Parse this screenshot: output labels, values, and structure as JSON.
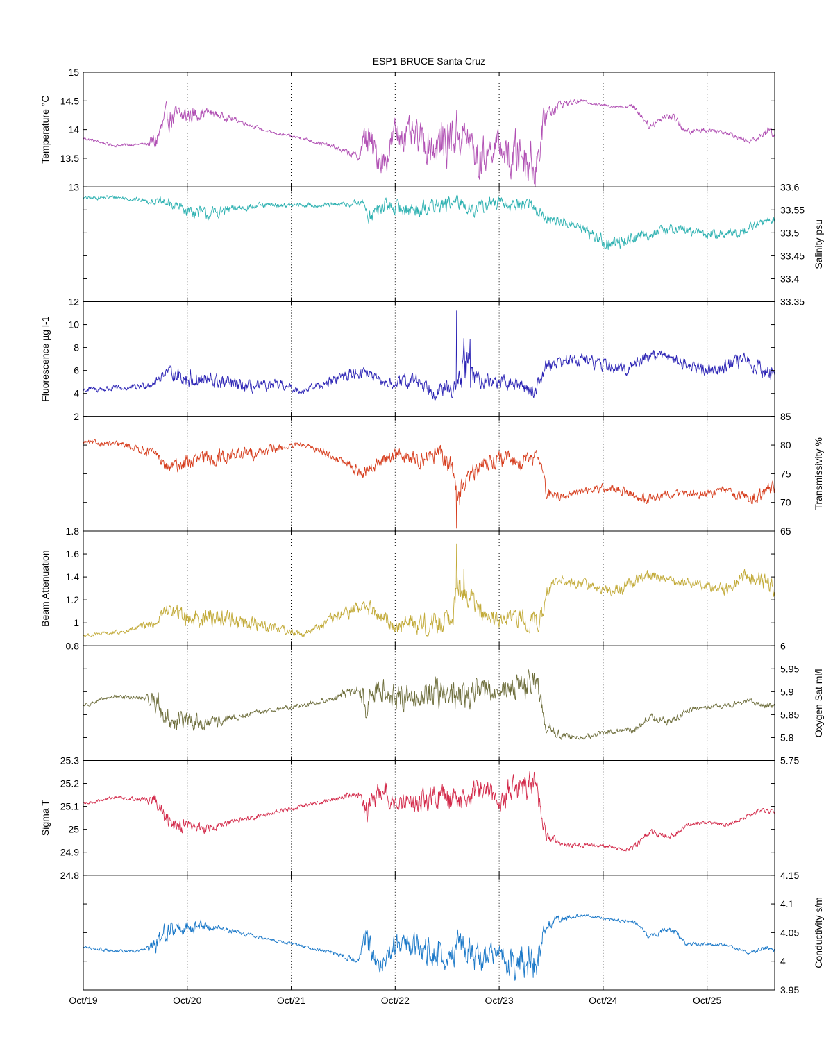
{
  "figure": {
    "title": "ESP1 BRUCE Santa Cruz",
    "x_tick_labels": [
      "Oct/19",
      "Oct/20",
      "Oct/21",
      "Oct/22",
      "Oct/23",
      "Oct/24",
      "Oct/25"
    ]
  },
  "chart_data": [
    {
      "type": "line",
      "ylabel": "Temperature °C",
      "axis_side": "left",
      "ylim": [
        13,
        15
      ],
      "yticks": [
        13,
        13.5,
        14,
        14.5,
        15
      ],
      "color": "#b04fb3",
      "x_unit": "days since Oct/19",
      "xlim": [
        0,
        6.65
      ],
      "x": [
        0,
        0.3,
        0.6,
        0.7,
        0.8,
        1.0,
        1.2,
        1.5,
        1.8,
        2.1,
        2.4,
        2.65,
        2.72,
        2.8,
        2.9,
        3.0,
        3.2,
        3.4,
        3.6,
        3.7,
        3.8,
        3.9,
        4.0,
        4.1,
        4.2,
        4.35,
        4.45,
        4.6,
        4.8,
        5.0,
        5.2,
        5.3,
        5.45,
        5.6,
        5.7,
        5.8,
        6.0,
        6.2,
        6.4,
        6.5,
        6.6,
        6.65
      ],
      "values": [
        13.85,
        13.72,
        13.75,
        13.8,
        14.2,
        14.25,
        14.3,
        14.15,
        13.95,
        13.85,
        13.7,
        13.52,
        13.9,
        13.6,
        13.45,
        13.95,
        13.85,
        13.7,
        13.95,
        13.85,
        13.45,
        13.65,
        13.75,
        13.45,
        13.65,
        13.35,
        14.3,
        14.45,
        14.5,
        14.42,
        14.4,
        14.4,
        14.05,
        14.25,
        14.2,
        13.95,
        14.0,
        13.95,
        13.78,
        13.88,
        14.0,
        13.9
      ],
      "noise": [
        0.02,
        0.02,
        0.02,
        0.15,
        0.15,
        0.12,
        0.06,
        0.03,
        0.02,
        0.02,
        0.03,
        0.05,
        0.25,
        0.2,
        0.2,
        0.2,
        0.2,
        0.3,
        0.3,
        0.2,
        0.3,
        0.2,
        0.15,
        0.3,
        0.3,
        0.3,
        0.12,
        0.05,
        0.02,
        0.02,
        0.02,
        0.04,
        0.04,
        0.05,
        0.06,
        0.04,
        0.03,
        0.03,
        0.03,
        0.05,
        0.06,
        0.04
      ]
    },
    {
      "type": "line",
      "ylabel": "Salinity psu",
      "axis_side": "right",
      "ylim": [
        33.35,
        33.6
      ],
      "yticks": [
        33.35,
        33.4,
        33.45,
        33.5,
        33.55,
        33.6
      ],
      "color": "#2db1b1",
      "x_unit": "days since Oct/19",
      "xlim": [
        0,
        6.65
      ],
      "x": [
        0,
        0.3,
        0.6,
        0.8,
        1.0,
        1.2,
        1.5,
        1.8,
        2.1,
        2.4,
        2.7,
        2.75,
        2.9,
        3.0,
        3.2,
        3.4,
        3.6,
        3.8,
        3.9,
        4.1,
        4.3,
        4.45,
        4.6,
        4.8,
        4.95,
        5.0,
        5.1,
        5.3,
        5.5,
        5.7,
        5.9,
        6.1,
        6.3,
        6.5,
        6.65
      ],
      "values": [
        33.575,
        33.578,
        33.57,
        33.565,
        33.55,
        33.54,
        33.555,
        33.56,
        33.56,
        33.56,
        33.565,
        33.535,
        33.56,
        33.555,
        33.55,
        33.56,
        33.565,
        33.55,
        33.565,
        33.56,
        33.565,
        33.53,
        33.525,
        33.51,
        33.49,
        33.48,
        33.475,
        33.49,
        33.5,
        33.51,
        33.5,
        33.495,
        33.5,
        33.52,
        33.53
      ],
      "noise": [
        0.003,
        0.003,
        0.004,
        0.008,
        0.01,
        0.01,
        0.006,
        0.004,
        0.004,
        0.004,
        0.006,
        0.012,
        0.012,
        0.012,
        0.012,
        0.012,
        0.012,
        0.012,
        0.012,
        0.01,
        0.012,
        0.008,
        0.008,
        0.008,
        0.01,
        0.012,
        0.012,
        0.01,
        0.008,
        0.008,
        0.008,
        0.008,
        0.008,
        0.006,
        0.006
      ]
    },
    {
      "type": "line",
      "ylabel": "Fluorescence µg l-1",
      "axis_side": "left",
      "ylim": [
        2,
        12
      ],
      "yticks": [
        2,
        4,
        6,
        8,
        10,
        12
      ],
      "color": "#2a22b4",
      "x_unit": "days since Oct/19",
      "xlim": [
        0,
        6.65
      ],
      "x": [
        0,
        0.5,
        0.7,
        0.8,
        1.0,
        1.3,
        1.6,
        1.9,
        2.1,
        2.3,
        2.5,
        2.7,
        2.85,
        3.0,
        3.2,
        3.4,
        3.6,
        3.65,
        3.7,
        3.8,
        4.0,
        4.2,
        4.35,
        4.45,
        4.6,
        4.8,
        5.0,
        5.2,
        5.4,
        5.6,
        5.8,
        6.0,
        6.2,
        6.4,
        6.65
      ],
      "values": [
        4.3,
        4.5,
        5.0,
        6.0,
        5.3,
        5.0,
        4.5,
        4.7,
        4.2,
        4.8,
        5.5,
        6.0,
        5.0,
        4.8,
        5.2,
        4.2,
        4.5,
        6.5,
        6.0,
        5.2,
        5.0,
        4.7,
        4.2,
        6.5,
        6.8,
        7.0,
        6.5,
        6.0,
        7.2,
        7.4,
        6.5,
        6.0,
        6.5,
        6.8,
        5.5
      ],
      "noise": [
        0.2,
        0.2,
        0.3,
        0.3,
        0.6,
        0.5,
        0.4,
        0.3,
        0.2,
        0.3,
        0.4,
        0.4,
        0.3,
        0.4,
        0.5,
        0.5,
        0.6,
        1.5,
        1.2,
        0.5,
        0.4,
        0.4,
        0.5,
        0.4,
        0.4,
        0.4,
        0.4,
        0.4,
        0.4,
        0.4,
        0.4,
        0.4,
        0.5,
        0.5,
        0.5
      ],
      "spikes": [
        {
          "x": 3.59,
          "value": 11.2
        },
        {
          "x": 3.66,
          "value": 8.8
        },
        {
          "x": 3.72,
          "value": 8.7
        }
      ]
    },
    {
      "type": "line",
      "ylabel": "Transmissivity %",
      "axis_side": "right",
      "ylim": [
        65,
        85
      ],
      "yticks": [
        65,
        70,
        75,
        80,
        85
      ],
      "color": "#d63c1c",
      "x_unit": "days since Oct/19",
      "xlim": [
        0,
        6.65
      ],
      "x": [
        0,
        0.4,
        0.7,
        0.8,
        1.0,
        1.3,
        1.6,
        1.9,
        2.1,
        2.3,
        2.5,
        2.7,
        2.85,
        3.0,
        3.2,
        3.4,
        3.55,
        3.6,
        3.7,
        3.85,
        4.0,
        4.2,
        4.4,
        4.45,
        4.6,
        4.8,
        5.0,
        5.2,
        5.4,
        5.6,
        5.8,
        6.0,
        6.2,
        6.4,
        6.65
      ],
      "values": [
        80.5,
        80.0,
        78.5,
        76.0,
        77.0,
        78.0,
        78.5,
        79.5,
        80.0,
        79.0,
        77.0,
        75.0,
        77.0,
        78.5,
        77.5,
        78.5,
        76.0,
        72.0,
        74.0,
        77.0,
        77.5,
        77.0,
        78.0,
        71.5,
        71.0,
        72.0,
        72.5,
        72.0,
        70.5,
        71.5,
        71.5,
        71.5,
        72.0,
        70.5,
        72.5
      ],
      "noise": [
        0.3,
        0.4,
        0.6,
        0.8,
        1.0,
        1.0,
        0.8,
        0.5,
        0.3,
        0.5,
        0.6,
        0.8,
        0.8,
        0.8,
        1.0,
        1.2,
        1.2,
        1.5,
        1.2,
        1.0,
        1.0,
        1.0,
        1.0,
        0.8,
        0.6,
        0.5,
        0.5,
        0.6,
        0.6,
        0.5,
        0.5,
        0.5,
        0.6,
        0.8,
        0.8
      ],
      "spikes": [
        {
          "x": 3.59,
          "value": 65.5
        },
        {
          "x": 3.62,
          "value": 69.5
        }
      ]
    },
    {
      "type": "line",
      "ylabel": "Beam Attenuation",
      "axis_side": "left",
      "ylim": [
        0.8,
        1.8
      ],
      "yticks": [
        0.8,
        1,
        1.2,
        1.4,
        1.6,
        1.8
      ],
      "color": "#c2aa38",
      "x_unit": "days since Oct/19",
      "xlim": [
        0,
        6.65
      ],
      "x": [
        0,
        0.4,
        0.7,
        0.8,
        1.0,
        1.3,
        1.6,
        1.9,
        2.1,
        2.3,
        2.5,
        2.7,
        2.85,
        3.0,
        3.2,
        3.4,
        3.55,
        3.6,
        3.7,
        3.85,
        4.0,
        4.2,
        4.4,
        4.45,
        4.6,
        4.8,
        5.0,
        5.2,
        5.4,
        5.6,
        5.8,
        6.0,
        6.2,
        6.4,
        6.65
      ],
      "values": [
        0.89,
        0.92,
        1.0,
        1.12,
        1.05,
        1.05,
        1.0,
        0.95,
        0.9,
        0.98,
        1.08,
        1.15,
        1.05,
        0.98,
        1.0,
        0.98,
        1.1,
        1.3,
        1.25,
        1.05,
        1.02,
        1.05,
        1.0,
        1.3,
        1.35,
        1.35,
        1.28,
        1.3,
        1.42,
        1.38,
        1.35,
        1.32,
        1.3,
        1.42,
        1.3
      ],
      "noise": [
        0.01,
        0.015,
        0.03,
        0.04,
        0.06,
        0.06,
        0.05,
        0.03,
        0.02,
        0.03,
        0.04,
        0.05,
        0.05,
        0.05,
        0.06,
        0.08,
        0.08,
        0.1,
        0.08,
        0.06,
        0.06,
        0.06,
        0.07,
        0.05,
        0.04,
        0.03,
        0.03,
        0.04,
        0.04,
        0.03,
        0.03,
        0.03,
        0.04,
        0.05,
        0.06
      ],
      "spikes": [
        {
          "x": 3.59,
          "value": 1.69
        },
        {
          "x": 3.66,
          "value": 1.47
        }
      ]
    },
    {
      "type": "line",
      "ylabel": "Oxygen Sat ml/l",
      "axis_side": "right",
      "ylim": [
        5.75,
        6
      ],
      "yticks": [
        5.75,
        5.8,
        5.85,
        5.9,
        5.95,
        6
      ],
      "color": "#6e6e3c",
      "x_unit": "days since Oct/19",
      "xlim": [
        0,
        6.65
      ],
      "x": [
        0,
        0.3,
        0.6,
        0.7,
        0.8,
        1.0,
        1.2,
        1.5,
        1.8,
        2.1,
        2.4,
        2.65,
        2.72,
        2.8,
        2.9,
        3.0,
        3.2,
        3.4,
        3.6,
        3.7,
        3.8,
        3.9,
        4.0,
        4.1,
        4.2,
        4.35,
        4.45,
        4.6,
        4.8,
        5.0,
        5.2,
        5.3,
        5.45,
        5.6,
        5.7,
        5.8,
        6.0,
        6.2,
        6.4,
        6.5,
        6.6,
        6.65
      ],
      "values": [
        5.87,
        5.89,
        5.885,
        5.88,
        5.84,
        5.835,
        5.83,
        5.845,
        5.86,
        5.87,
        5.885,
        5.905,
        5.87,
        5.895,
        5.91,
        5.885,
        5.895,
        5.9,
        5.885,
        5.89,
        5.915,
        5.9,
        5.89,
        5.915,
        5.9,
        5.93,
        5.825,
        5.805,
        5.8,
        5.81,
        5.815,
        5.815,
        5.85,
        5.835,
        5.84,
        5.86,
        5.865,
        5.87,
        5.88,
        5.875,
        5.87,
        5.865
      ],
      "noise": [
        0.003,
        0.003,
        0.004,
        0.02,
        0.02,
        0.015,
        0.01,
        0.005,
        0.004,
        0.004,
        0.005,
        0.008,
        0.025,
        0.02,
        0.02,
        0.02,
        0.02,
        0.025,
        0.025,
        0.02,
        0.025,
        0.02,
        0.015,
        0.025,
        0.025,
        0.025,
        0.012,
        0.006,
        0.004,
        0.004,
        0.004,
        0.006,
        0.006,
        0.006,
        0.006,
        0.005,
        0.004,
        0.004,
        0.004,
        0.005,
        0.006,
        0.005
      ]
    },
    {
      "type": "line",
      "ylabel": "Sigma T",
      "axis_side": "left",
      "ylim": [
        24.8,
        25.3
      ],
      "yticks": [
        24.8,
        24.9,
        25,
        25.1,
        25.2,
        25.3
      ],
      "color": "#d32a4a",
      "x_unit": "days since Oct/19",
      "xlim": [
        0,
        6.65
      ],
      "x": [
        0,
        0.3,
        0.6,
        0.7,
        0.8,
        1.0,
        1.2,
        1.5,
        1.8,
        2.1,
        2.4,
        2.65,
        2.72,
        2.8,
        2.9,
        3.0,
        3.2,
        3.4,
        3.6,
        3.7,
        3.8,
        3.9,
        4.0,
        4.1,
        4.2,
        4.35,
        4.45,
        4.6,
        4.8,
        5.0,
        5.2,
        5.3,
        5.45,
        5.6,
        5.7,
        5.8,
        6.0,
        6.2,
        6.4,
        6.5,
        6.6,
        6.65
      ],
      "values": [
        25.11,
        25.14,
        25.13,
        25.12,
        25.03,
        25.02,
        25.0,
        25.04,
        25.07,
        25.1,
        25.13,
        25.16,
        25.08,
        25.13,
        25.18,
        25.1,
        25.12,
        25.14,
        25.12,
        25.13,
        25.18,
        25.15,
        25.12,
        25.18,
        25.16,
        25.2,
        24.97,
        24.93,
        24.93,
        24.93,
        24.91,
        24.92,
        24.99,
        24.97,
        24.98,
        25.02,
        25.03,
        25.02,
        25.06,
        25.08,
        25.08,
        25.07
      ],
      "noise": [
        0.005,
        0.005,
        0.007,
        0.03,
        0.03,
        0.025,
        0.015,
        0.008,
        0.006,
        0.006,
        0.008,
        0.012,
        0.04,
        0.035,
        0.035,
        0.035,
        0.035,
        0.045,
        0.045,
        0.035,
        0.045,
        0.035,
        0.025,
        0.045,
        0.045,
        0.045,
        0.02,
        0.01,
        0.008,
        0.006,
        0.006,
        0.01,
        0.01,
        0.01,
        0.01,
        0.008,
        0.006,
        0.006,
        0.006,
        0.008,
        0.01,
        0.008
      ]
    },
    {
      "type": "line",
      "ylabel": "Conductivity s/m",
      "axis_side": "right",
      "ylim": [
        3.95,
        4.15
      ],
      "yticks": [
        3.95,
        4,
        4.05,
        4.1,
        4.15
      ],
      "color": "#1a78c8",
      "x_unit": "days since Oct/19",
      "xlim": [
        0,
        6.65
      ],
      "x": [
        0,
        0.3,
        0.6,
        0.7,
        0.8,
        1.0,
        1.2,
        1.5,
        1.8,
        2.1,
        2.4,
        2.65,
        2.72,
        2.8,
        2.9,
        3.0,
        3.2,
        3.4,
        3.6,
        3.7,
        3.8,
        3.9,
        4.0,
        4.1,
        4.2,
        4.35,
        4.45,
        4.6,
        4.8,
        5.0,
        5.2,
        5.3,
        5.45,
        5.6,
        5.7,
        5.8,
        6.0,
        6.2,
        6.4,
        6.5,
        6.6,
        6.65
      ],
      "values": [
        4.025,
        4.017,
        4.02,
        4.025,
        4.055,
        4.06,
        4.062,
        4.05,
        4.038,
        4.027,
        4.015,
        4.0,
        4.04,
        4.01,
        3.995,
        4.03,
        4.025,
        4.01,
        4.03,
        4.025,
        3.995,
        4.01,
        4.015,
        3.995,
        4.01,
        3.99,
        4.065,
        4.075,
        4.08,
        4.075,
        4.07,
        4.07,
        4.04,
        4.055,
        4.05,
        4.03,
        4.03,
        4.028,
        4.015,
        4.02,
        4.025,
        4.02
      ],
      "noise": [
        0.002,
        0.002,
        0.002,
        0.012,
        0.012,
        0.01,
        0.005,
        0.003,
        0.002,
        0.002,
        0.003,
        0.004,
        0.018,
        0.015,
        0.015,
        0.015,
        0.015,
        0.022,
        0.022,
        0.015,
        0.022,
        0.015,
        0.01,
        0.022,
        0.022,
        0.022,
        0.008,
        0.004,
        0.002,
        0.002,
        0.002,
        0.003,
        0.003,
        0.004,
        0.004,
        0.003,
        0.002,
        0.002,
        0.002,
        0.003,
        0.004,
        0.003
      ]
    }
  ]
}
